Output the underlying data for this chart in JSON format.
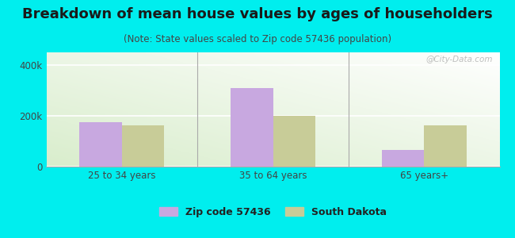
{
  "title": "Breakdown of mean house values by ages of householders",
  "subtitle": "(Note: State values scaled to Zip code 57436 population)",
  "categories": [
    "25 to 34 years",
    "35 to 64 years",
    "65 years+"
  ],
  "zip_values": [
    175000,
    310000,
    65000
  ],
  "state_values": [
    162000,
    200000,
    162000
  ],
  "zip_color": "#c8a8e0",
  "state_color": "#c8cc98",
  "ylim": [
    0,
    450000
  ],
  "yticks": [
    0,
    200000,
    400000
  ],
  "ytick_labels": [
    "0",
    "200k",
    "400k"
  ],
  "background_outer": "#00eeee",
  "legend_zip_label": "Zip code 57436",
  "legend_state_label": "South Dakota",
  "bar_width": 0.28,
  "title_fontsize": 13,
  "subtitle_fontsize": 8.5,
  "watermark": "@City-Data.com"
}
